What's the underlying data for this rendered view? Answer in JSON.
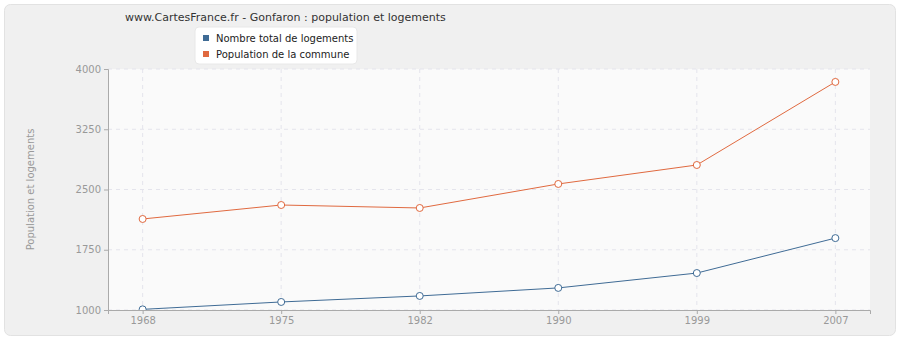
{
  "chart_data": {
    "type": "line",
    "title": "www.CartesFrance.fr - Gonfaron : population et logements",
    "y_label": "Population et logements",
    "categories": [
      "1968",
      "1975",
      "1982",
      "1990",
      "1999",
      "2007"
    ],
    "series": [
      {
        "name": "Nombre total de logements",
        "color": "#3f6b95",
        "values": [
          1008,
          1100,
          1175,
          1275,
          1460,
          1895
        ]
      },
      {
        "name": "Population de la commune",
        "color": "#e0693f",
        "values": [
          2133,
          2307,
          2270,
          2569,
          2805,
          3839
        ]
      }
    ],
    "ylim": [
      1000,
      4000
    ],
    "yticks": [
      1000,
      1750,
      2500,
      3250,
      4000
    ],
    "grid": true,
    "legend": "top",
    "marker": "circle"
  }
}
